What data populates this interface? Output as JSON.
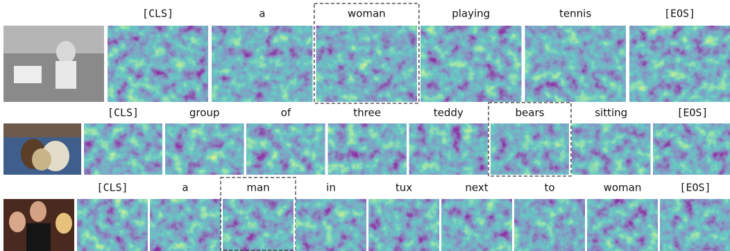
{
  "rows": [
    {
      "tokens": [
        "[CLS]",
        "a",
        "woman",
        "playing",
        "tennis",
        "[EOS]"
      ]
    },
    {
      "tokens": [
        "[CLS]",
        "group",
        "of",
        "three",
        "teddy",
        "bears",
        "sitting",
        "[EOS]"
      ]
    },
    {
      "tokens": [
        "[CLS]",
        "a",
        "man",
        "in",
        "tux",
        "next",
        "to",
        "woman",
        "[EOS]"
      ]
    }
  ]
}
